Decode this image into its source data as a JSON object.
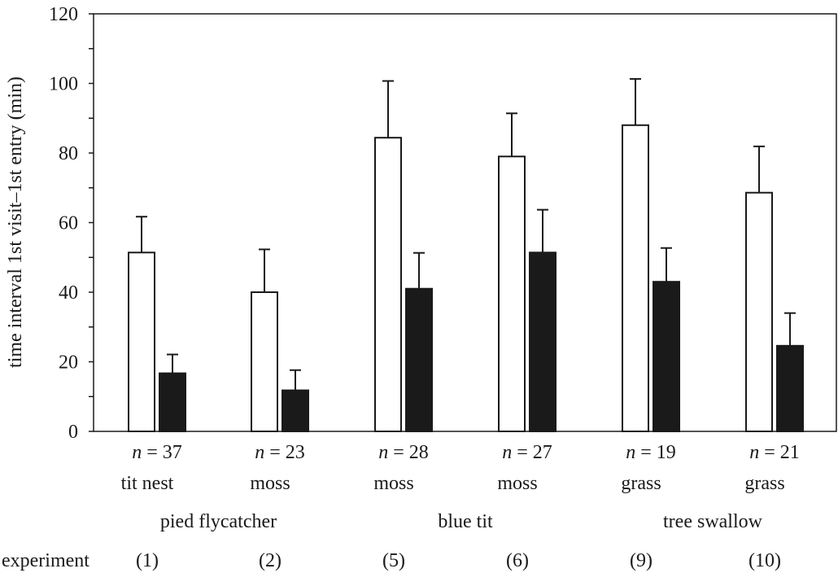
{
  "chart_data": {
    "type": "bar",
    "title": "",
    "ylabel": "time interval 1st visit–1st entry (min)",
    "xlabel": "",
    "ylim": [
      0,
      120
    ],
    "yticks": [
      0,
      20,
      40,
      60,
      80,
      100,
      120
    ],
    "grid": false,
    "categories": [
      {
        "n_label": "n",
        "n_value": "= 37",
        "material": "tit nest",
        "experiment": "(1)"
      },
      {
        "n_label": "n",
        "n_value": "= 23",
        "material": "moss",
        "experiment": "(2)"
      },
      {
        "n_label": "n",
        "n_value": "= 28",
        "material": "moss",
        "experiment": "(5)"
      },
      {
        "n_label": "n",
        "n_value": "= 27",
        "material": "moss",
        "experiment": "(6)"
      },
      {
        "n_label": "n",
        "n_value": "= 19",
        "material": "grass",
        "experiment": "(9)"
      },
      {
        "n_label": "n",
        "n_value": "= 21",
        "material": "grass",
        "experiment": "(10)"
      }
    ],
    "species": [
      "pied flycatcher",
      "blue tit",
      "tree swallow"
    ],
    "experiment_label": "experiment",
    "series": [
      {
        "name": "open bars",
        "color": "#ffffff",
        "values": [
          51.4,
          40.0,
          84.4,
          79.0,
          88.0,
          68.6
        ],
        "error_upper": [
          61.7,
          52.3,
          100.7,
          91.4,
          101.3,
          81.9
        ]
      },
      {
        "name": "filled bars",
        "color": "#1a1a1a",
        "values": [
          16.7,
          11.8,
          41.0,
          51.4,
          43.0,
          24.6
        ],
        "error_upper": [
          22.1,
          17.6,
          51.3,
          63.7,
          52.7,
          34.0
        ]
      }
    ]
  }
}
